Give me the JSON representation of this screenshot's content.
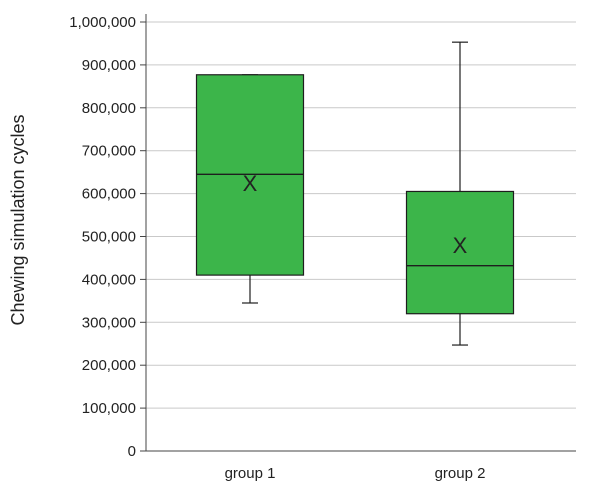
{
  "chart_data": {
    "type": "box",
    "title": "",
    "xlabel": "",
    "ylabel": "Chewing simulation cycles",
    "ylim": [
      0,
      1000000
    ],
    "yticks": [
      0,
      100000,
      200000,
      300000,
      400000,
      500000,
      600000,
      700000,
      800000,
      900000,
      1000000
    ],
    "ytick_labels": [
      "0",
      "100,000",
      "200,000",
      "300,000",
      "400,000",
      "500,000",
      "600,000",
      "700,000",
      "800,000",
      "900,000",
      "1,000,000"
    ],
    "grid": true,
    "categories": [
      "group 1",
      "group 2"
    ],
    "boxes": [
      {
        "category": "group 1",
        "min": 345000,
        "q1": 410000,
        "median": 645000,
        "q3": 877000,
        "max": 877000,
        "mean": 625000
      },
      {
        "category": "group 2",
        "min": 247000,
        "q1": 320000,
        "median": 432000,
        "q3": 605000,
        "max": 953000,
        "mean": 480000
      }
    ],
    "mean_marker": "X",
    "colors": {
      "box_fill": "#3cb54a",
      "box_stroke": "#1e1e1e",
      "grid": "#c9c9c9",
      "axis": "#444444"
    }
  }
}
